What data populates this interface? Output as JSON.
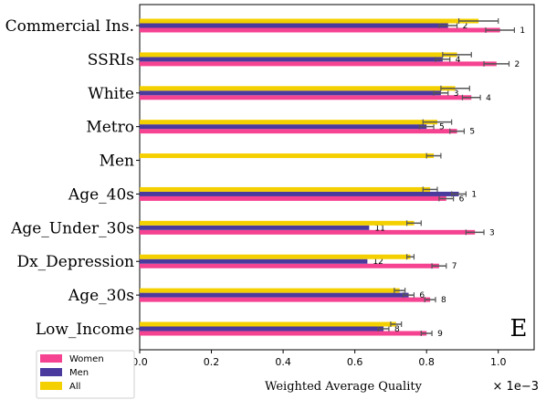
{
  "chart_data": {
    "type": "bar",
    "orientation": "horizontal",
    "xlabel": "Weighted Average Quality",
    "x_multiplier": "× 1e−3",
    "panel_label": "E",
    "xlim": [
      0.0,
      1.1
    ],
    "xticks": [
      "0.0",
      "0.2",
      "0.4",
      "0.6",
      "0.8",
      "1.0"
    ],
    "grid": false,
    "legend_placement": "bottom-left",
    "categories": [
      "Commercial Ins.",
      "SSRIs",
      "White",
      "Metro",
      "Men",
      "Age_40s",
      "Age_Under_30s",
      "Dx_Depression",
      "Age_30s",
      "Low_Income"
    ],
    "series": [
      {
        "name": "Women",
        "color": "#f54291",
        "values": [
          1.005,
          0.995,
          0.925,
          0.885,
          null,
          0.855,
          0.935,
          0.835,
          0.81,
          0.8
        ],
        "errors": [
          0.04,
          0.035,
          0.025,
          0.02,
          null,
          0.02,
          0.025,
          0.02,
          0.015,
          0.015
        ],
        "ranks": [
          "1",
          "2",
          "4",
          "5",
          "",
          "6",
          "3",
          "7",
          "8",
          "9"
        ]
      },
      {
        "name": "Men",
        "color": "#4a3a9e",
        "values": [
          0.86,
          0.845,
          0.84,
          0.8,
          null,
          0.89,
          0.64,
          0.635,
          0.75,
          0.68
        ],
        "errors": [
          0.025,
          0.02,
          0.02,
          0.02,
          null,
          0.02,
          0.0,
          0.0,
          0.015,
          0.015
        ],
        "ranks": [
          "2",
          "4",
          "3",
          "5",
          "",
          "1",
          "11",
          "12",
          "6",
          "8"
        ]
      },
      {
        "name": "All",
        "color": "#f5d000",
        "values": [
          0.945,
          0.885,
          0.88,
          0.83,
          0.82,
          0.81,
          0.765,
          0.755,
          0.725,
          0.715
        ],
        "errors": [
          0.055,
          0.04,
          0.04,
          0.04,
          0.02,
          0.02,
          0.02,
          0.01,
          0.015,
          0.015
        ],
        "ranks": [
          "",
          "",
          "",
          "",
          "",
          "",
          "",
          "",
          "",
          ""
        ]
      }
    ]
  }
}
